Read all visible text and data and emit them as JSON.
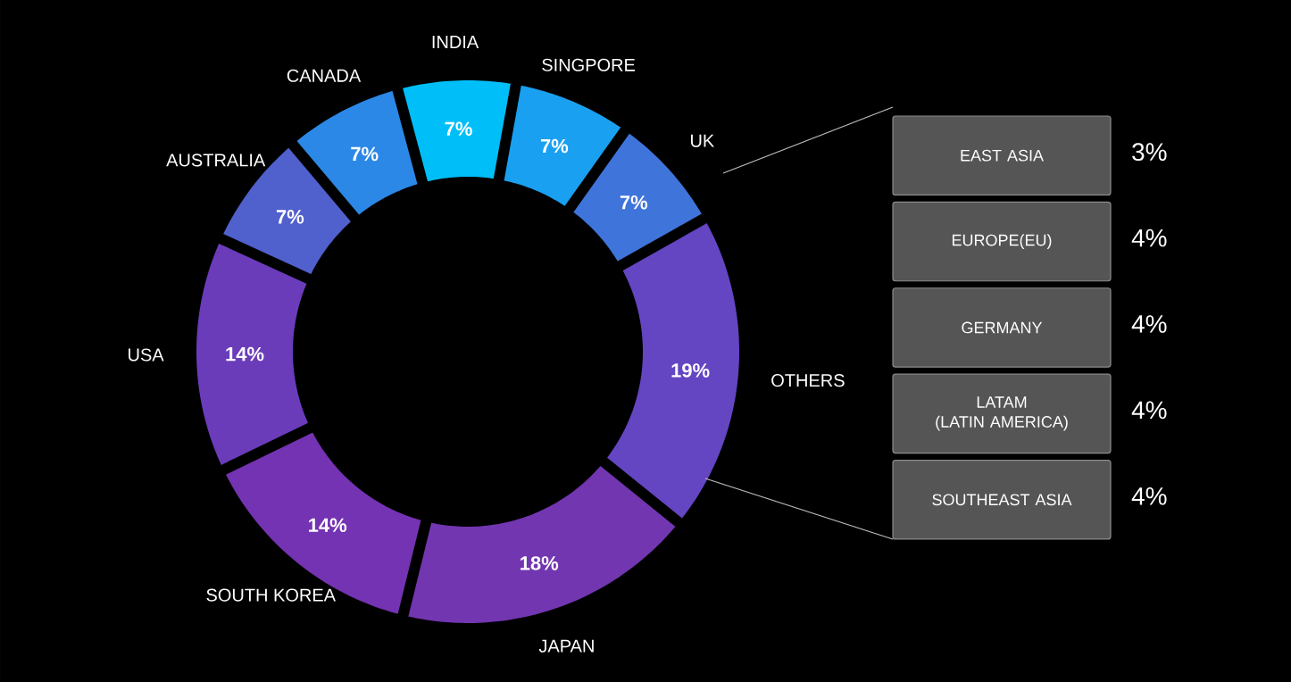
{
  "chart_data": [
    {
      "type": "donut",
      "categories": [
        "INDIA",
        "SINGPORE",
        "UK",
        "OTHERS",
        "JAPAN",
        "SOUTH KOREA",
        "USA",
        "AUSTRALIA",
        "CANADA"
      ],
      "values": [
        7,
        7,
        7,
        19,
        18,
        14,
        14,
        7,
        7
      ],
      "value_labels": [
        "7%",
        "7%",
        "7%",
        "19%",
        "18%",
        "14%",
        "14%",
        "7%",
        "7%"
      ],
      "colors": [
        "#00bff8",
        "#1aa0f0",
        "#3f74da",
        "#6445c2",
        "#7236b0",
        "#7433b2",
        "#6a3cba",
        "#5060cc",
        "#2c88e6"
      ]
    },
    {
      "type": "other",
      "categories": [
        "EAST ASIA",
        "EUROPE(EU)",
        "GERMANY",
        "LATAM\n(LATIN AMERICA)",
        "SOUTHEAST ASIA"
      ],
      "value_labels": [
        "3%",
        "4%",
        "4%",
        "4%",
        "4%"
      ],
      "color": "#555555"
    }
  ]
}
